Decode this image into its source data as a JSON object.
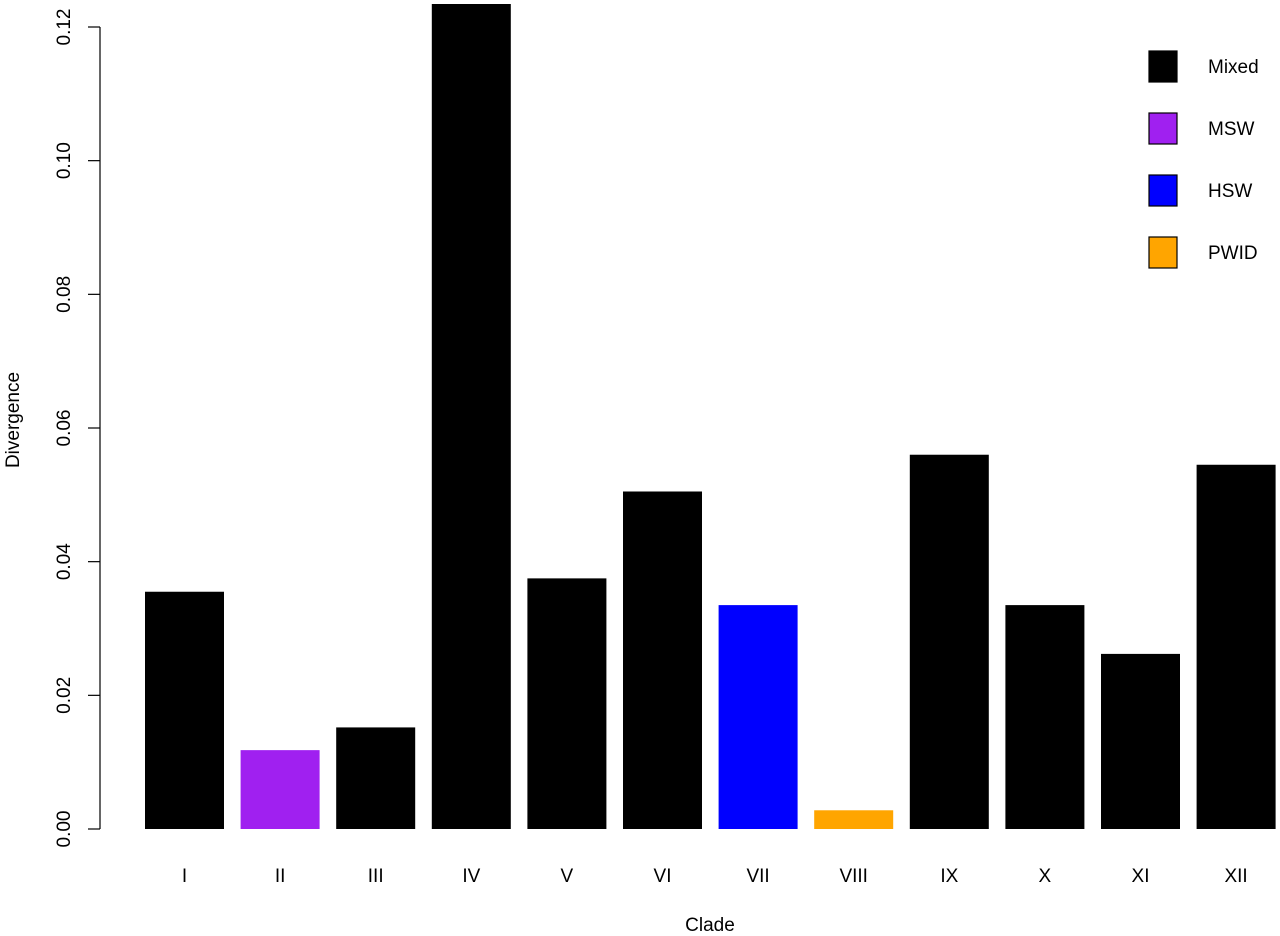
{
  "chart_data": {
    "type": "bar",
    "title": "",
    "xlabel": "Clade",
    "ylabel": "Divergence",
    "categories": [
      "I",
      "II",
      "III",
      "IV",
      "V",
      "VI",
      "VII",
      "VIII",
      "IX",
      "X",
      "XI",
      "XII"
    ],
    "values": [
      0.0355,
      0.0118,
      0.0152,
      0.1235,
      0.0375,
      0.0505,
      0.0335,
      0.0028,
      0.056,
      0.0335,
      0.0262,
      0.0545
    ],
    "groups": [
      "Mixed",
      "MSW",
      "Mixed",
      "Mixed",
      "Mixed",
      "Mixed",
      "HSW",
      "PWID",
      "Mixed",
      "Mixed",
      "Mixed",
      "Mixed"
    ],
    "ylim": [
      0,
      0.12
    ],
    "yticks": [
      "0.00",
      "0.02",
      "0.04",
      "0.06",
      "0.08",
      "0.10",
      "0.12"
    ],
    "grid": false,
    "legend": {
      "position": "top-right",
      "entries": [
        {
          "label": "Mixed",
          "color": "#000000"
        },
        {
          "label": "MSW",
          "color": "#a020f0"
        },
        {
          "label": "HSW",
          "color": "#0000ff"
        },
        {
          "label": "PWID",
          "color": "#ffa500"
        }
      ]
    }
  }
}
